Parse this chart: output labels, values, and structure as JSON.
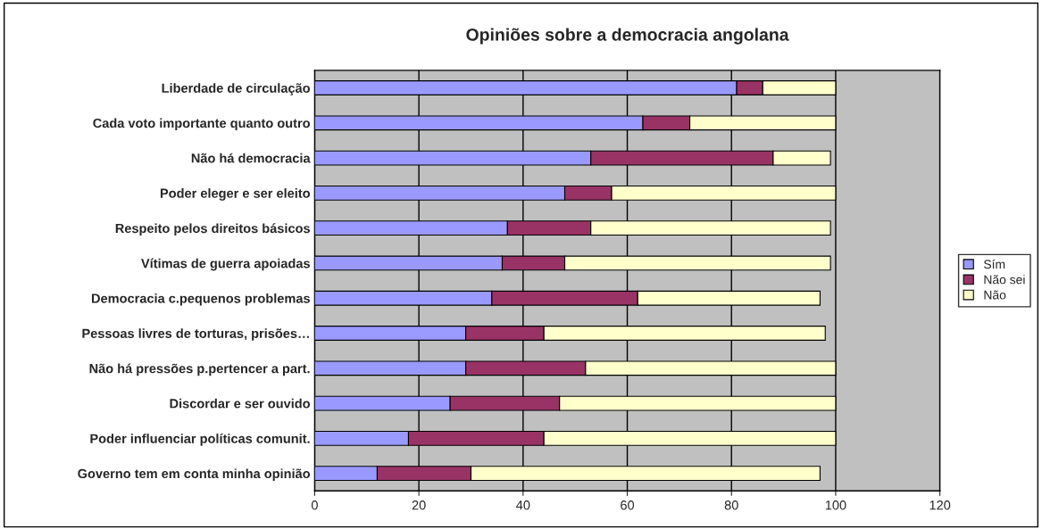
{
  "chart_data": {
    "type": "bar",
    "orientation": "horizontal",
    "stacked": true,
    "title": "Opiniões sobre a democracia angolana",
    "categories": [
      "Liberdade de circulação",
      "Cada voto importante quanto outro",
      "Não há democracia",
      "Poder eleger e ser eleito",
      "Respeito pelos direitos básicos",
      "Vítimas de guerra apoiadas",
      "Democracia c.pequenos problemas",
      "Pessoas livres de torturas, prisões…",
      "Não há pressões p.pertencer a part.",
      "Discordar e ser ouvido",
      "Poder influenciar políticas comunit.",
      "Governo tem em conta minha opinião"
    ],
    "series": [
      {
        "name": "Sím",
        "color": "#9999ff",
        "values": [
          81,
          63,
          53,
          48,
          37,
          36,
          34,
          29,
          29,
          26,
          18,
          12
        ]
      },
      {
        "name": "Não sei",
        "color": "#993366",
        "values": [
          5,
          9,
          35,
          9,
          16,
          12,
          28,
          15,
          23,
          21,
          26,
          18
        ]
      },
      {
        "name": "Não",
        "color": "#ffffcc",
        "values": [
          14,
          28,
          11,
          43,
          46,
          51,
          35,
          54,
          48,
          53,
          56,
          67
        ]
      }
    ],
    "xlim": [
      0,
      120
    ],
    "xticks": [
      0,
      20,
      40,
      60,
      80,
      100,
      120
    ],
    "grid": "x",
    "legend": "right"
  }
}
